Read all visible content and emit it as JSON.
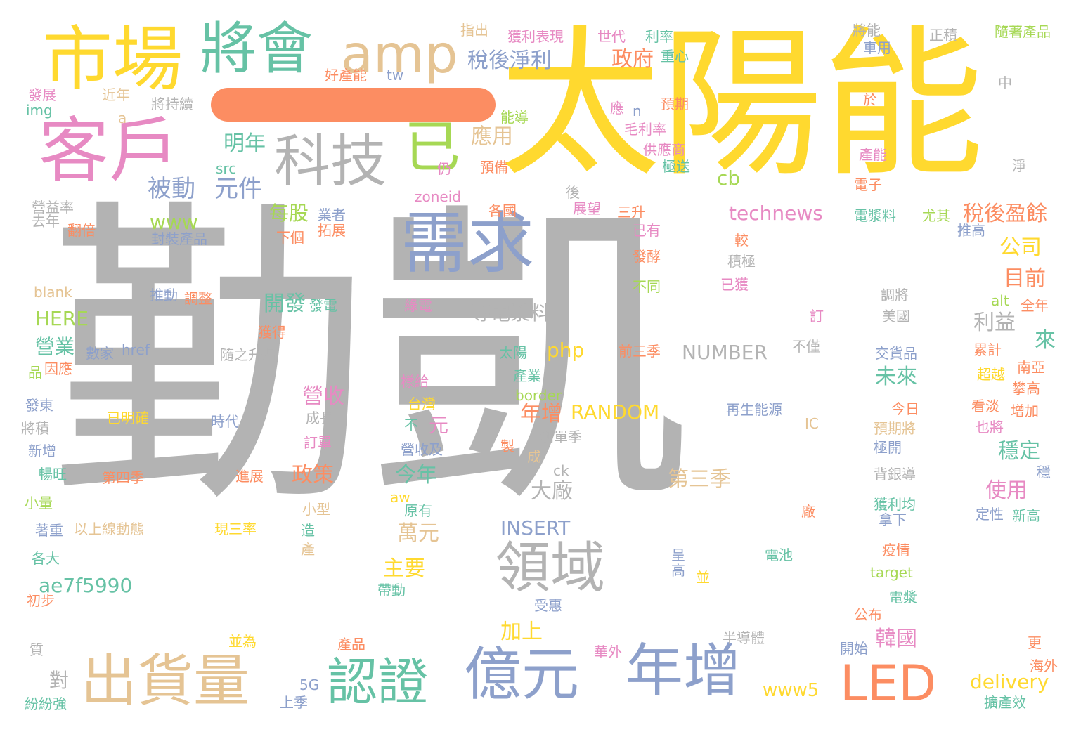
{
  "palette": {
    "gray": "#b3b3b3",
    "yellow": "#ffd92f",
    "teal": "#66c2a5",
    "orange": "#fc8d62",
    "blue": "#8da0cb",
    "pink": "#e78ac3",
    "green": "#a6d854",
    "tan": "#e5c494"
  },
  "words": [
    {
      "t": "勤凱",
      "c": "gray"
    },
    {
      "t": "太陽能",
      "c": "yellow"
    },
    {
      "t": "市場",
      "c": "yellow"
    },
    {
      "t": "將會",
      "c": "teal"
    },
    {
      "t": "amp",
      "c": "tan"
    },
    {
      "t": "客戶",
      "c": "pink"
    },
    {
      "t": "科技",
      "c": "gray"
    },
    {
      "t": "已",
      "c": "green"
    },
    {
      "t": "需求",
      "c": "blue"
    },
    {
      "t": "出貨量",
      "c": "tan"
    },
    {
      "t": "認證",
      "c": "teal"
    },
    {
      "t": "億元",
      "c": "blue"
    },
    {
      "t": "年增",
      "c": "blue"
    },
    {
      "t": "LED",
      "c": "orange"
    },
    {
      "t": "領域",
      "c": "gray"
    },
    {
      "t": "稅後淨利",
      "c": "blue"
    },
    {
      "t": "政府",
      "c": "orange"
    },
    {
      "t": "應用",
      "c": "tan"
    },
    {
      "t": "明年",
      "c": "teal"
    },
    {
      "t": "被動",
      "c": "blue"
    },
    {
      "t": "元件",
      "c": "blue"
    },
    {
      "t": "cb",
      "c": "green"
    },
    {
      "t": "technews",
      "c": "pink"
    },
    {
      "t": "稅後盈餘",
      "c": "orange"
    },
    {
      "t": "公司",
      "c": "yellow"
    },
    {
      "t": "目前",
      "c": "orange"
    },
    {
      "t": "每股",
      "c": "green"
    },
    {
      "t": "www",
      "c": "green"
    },
    {
      "t": "導電漿料",
      "c": "gray"
    },
    {
      "t": "開發",
      "c": "teal"
    },
    {
      "t": "利益",
      "c": "gray"
    },
    {
      "t": "來",
      "c": "teal"
    },
    {
      "t": "HERE",
      "c": "green"
    },
    {
      "t": "營業",
      "c": "teal"
    },
    {
      "t": "php",
      "c": "yellow"
    },
    {
      "t": "NUMBER",
      "c": "gray"
    },
    {
      "t": "未來",
      "c": "teal"
    },
    {
      "t": "營收",
      "c": "pink"
    },
    {
      "t": "年增",
      "c": "orange"
    },
    {
      "t": "RANDOM",
      "c": "yellow"
    },
    {
      "t": "元",
      "c": "pink"
    },
    {
      "t": "穩定",
      "c": "teal"
    },
    {
      "t": "政策",
      "c": "orange"
    },
    {
      "t": "今年",
      "c": "teal"
    },
    {
      "t": "第三季",
      "c": "tan"
    },
    {
      "t": "大廠",
      "c": "gray"
    },
    {
      "t": "使用",
      "c": "pink"
    },
    {
      "t": "INSERT",
      "c": "blue"
    },
    {
      "t": "萬元",
      "c": "tan"
    },
    {
      "t": "主要",
      "c": "yellow"
    },
    {
      "t": "ae7f5990",
      "c": "teal"
    },
    {
      "t": "加上",
      "c": "yellow"
    },
    {
      "t": "韓國",
      "c": "pink"
    },
    {
      "t": "delivery",
      "c": "yellow"
    },
    {
      "t": "www5",
      "c": "yellow"
    },
    {
      "t": "對",
      "c": "gray"
    },
    {
      "t": "指出",
      "c": "tan"
    },
    {
      "t": "獲利表現",
      "c": "pink"
    },
    {
      "t": "世代",
      "c": "pink"
    },
    {
      "t": "利率",
      "c": "teal"
    },
    {
      "t": "將能",
      "c": "gray"
    },
    {
      "t": "正積",
      "c": "gray"
    },
    {
      "t": "隨著產品",
      "c": "green"
    },
    {
      "t": "車用",
      "c": "blue"
    },
    {
      "t": "重心",
      "c": "teal"
    },
    {
      "t": "好產能",
      "c": "orange"
    },
    {
      "t": "tw",
      "c": "blue"
    },
    {
      "t": "發展",
      "c": "pink"
    },
    {
      "t": "近年",
      "c": "tan"
    },
    {
      "t": "img",
      "c": "teal"
    },
    {
      "t": "將持續",
      "c": "gray"
    },
    {
      "t": "a",
      "c": "tan"
    },
    {
      "t": "應",
      "c": "pink"
    },
    {
      "t": "n",
      "c": "blue"
    },
    {
      "t": "預期",
      "c": "orange"
    },
    {
      "t": "毛利率",
      "c": "pink"
    },
    {
      "t": "能導",
      "c": "green"
    },
    {
      "t": "供應商",
      "c": "pink"
    },
    {
      "t": "極送",
      "c": "teal"
    },
    {
      "t": "中",
      "c": "gray"
    },
    {
      "t": "於",
      "c": "orange"
    },
    {
      "t": "產能",
      "c": "pink"
    },
    {
      "t": "淨",
      "c": "gray"
    },
    {
      "t": "電子",
      "c": "orange"
    },
    {
      "t": "src",
      "c": "teal"
    },
    {
      "t": "仍",
      "c": "pink"
    },
    {
      "t": "預備",
      "c": "orange"
    },
    {
      "t": "zoneid",
      "c": "pink"
    },
    {
      "t": "後",
      "c": "gray"
    },
    {
      "t": "展望",
      "c": "pink"
    },
    {
      "t": "各國",
      "c": "orange"
    },
    {
      "t": "三升",
      "c": "orange"
    },
    {
      "t": "已有",
      "c": "pink"
    },
    {
      "t": "電漿料",
      "c": "teal"
    },
    {
      "t": "尤其",
      "c": "green"
    },
    {
      "t": "推高",
      "c": "blue"
    },
    {
      "t": "營益率",
      "c": "gray"
    },
    {
      "t": "去年",
      "c": "gray"
    },
    {
      "t": "翻倍",
      "c": "orange"
    },
    {
      "t": "業者",
      "c": "blue"
    },
    {
      "t": "拓展",
      "c": "orange"
    },
    {
      "t": "封裝產品",
      "c": "blue"
    },
    {
      "t": "下個",
      "c": "orange"
    },
    {
      "t": "較",
      "c": "orange"
    },
    {
      "t": "發酵",
      "c": "orange"
    },
    {
      "t": "積極",
      "c": "gray"
    },
    {
      "t": "不同",
      "c": "green"
    },
    {
      "t": "已獲",
      "c": "pink"
    },
    {
      "t": "blank",
      "c": "tan"
    },
    {
      "t": "推動",
      "c": "blue"
    },
    {
      "t": "調整",
      "c": "orange"
    },
    {
      "t": "綠電",
      "c": "pink"
    },
    {
      "t": "發電",
      "c": "teal"
    },
    {
      "t": "訂",
      "c": "pink"
    },
    {
      "t": "美國",
      "c": "gray"
    },
    {
      "t": "調將",
      "c": "gray"
    },
    {
      "t": "alt",
      "c": "green"
    },
    {
      "t": "全年",
      "c": "orange"
    },
    {
      "t": "獲得",
      "c": "orange"
    },
    {
      "t": "數家",
      "c": "blue"
    },
    {
      "t": "href",
      "c": "blue"
    },
    {
      "t": "隨之升溫",
      "c": "gray"
    },
    {
      "t": "太陽",
      "c": "teal"
    },
    {
      "t": "前三季",
      "c": "orange"
    },
    {
      "t": "不僅",
      "c": "gray"
    },
    {
      "t": "交貨品",
      "c": "blue"
    },
    {
      "t": "累計",
      "c": "orange"
    },
    {
      "t": "因應",
      "c": "orange"
    },
    {
      "t": "品",
      "c": "green"
    },
    {
      "t": "產業",
      "c": "teal"
    },
    {
      "t": "樣給",
      "c": "pink"
    },
    {
      "t": "超越",
      "c": "yellow"
    },
    {
      "t": "南亞",
      "c": "orange"
    },
    {
      "t": "發東",
      "c": "blue"
    },
    {
      "t": "border",
      "c": "green"
    },
    {
      "t": "台灣",
      "c": "yellow"
    },
    {
      "t": "已明確",
      "c": "yellow"
    },
    {
      "t": "時代",
      "c": "blue"
    },
    {
      "t": "成長",
      "c": "gray"
    },
    {
      "t": "再生能源",
      "c": "blue"
    },
    {
      "t": "今日",
      "c": "orange"
    },
    {
      "t": "攀高",
      "c": "orange"
    },
    {
      "t": "看淡",
      "c": "orange"
    },
    {
      "t": "增加",
      "c": "orange"
    },
    {
      "t": "將積",
      "c": "gray"
    },
    {
      "t": "不",
      "c": "teal"
    },
    {
      "t": "IC",
      "c": "tan"
    },
    {
      "t": "預期將",
      "c": "tan"
    },
    {
      "t": "也將",
      "c": "pink"
    },
    {
      "t": "新增",
      "c": "blue"
    },
    {
      "t": "訂單",
      "c": "pink"
    },
    {
      "t": "營收及",
      "c": "blue"
    },
    {
      "t": "製",
      "c": "orange"
    },
    {
      "t": "創單季",
      "c": "gray"
    },
    {
      "t": "極開",
      "c": "blue"
    },
    {
      "t": "暢旺",
      "c": "teal"
    },
    {
      "t": "第四季",
      "c": "orange"
    },
    {
      "t": "進展",
      "c": "orange"
    },
    {
      "t": "成",
      "c": "tan"
    },
    {
      "t": "ck",
      "c": "gray"
    },
    {
      "t": "背銀導",
      "c": "gray"
    },
    {
      "t": "穩",
      "c": "blue"
    },
    {
      "t": "小量",
      "c": "green"
    },
    {
      "t": "小型",
      "c": "tan"
    },
    {
      "t": "aw",
      "c": "yellow"
    },
    {
      "t": "原有",
      "c": "teal"
    },
    {
      "t": "廠",
      "c": "orange"
    },
    {
      "t": "獲利均",
      "c": "teal"
    },
    {
      "t": "定性",
      "c": "blue"
    },
    {
      "t": "新高",
      "c": "teal"
    },
    {
      "t": "著重",
      "c": "blue"
    },
    {
      "t": "以上線動態",
      "c": "tan"
    },
    {
      "t": "現三率",
      "c": "yellow"
    },
    {
      "t": "造",
      "c": "teal"
    },
    {
      "t": "拿下",
      "c": "blue"
    },
    {
      "t": "各大",
      "c": "teal"
    },
    {
      "t": "產",
      "c": "tan"
    },
    {
      "t": "呈",
      "c": "blue"
    },
    {
      "t": "高",
      "c": "blue"
    },
    {
      "t": "電池",
      "c": "teal"
    },
    {
      "t": "疫情",
      "c": "orange"
    },
    {
      "t": "並",
      "c": "yellow"
    },
    {
      "t": "target",
      "c": "green"
    },
    {
      "t": "初步",
      "c": "orange"
    },
    {
      "t": "帶動",
      "c": "teal"
    },
    {
      "t": "受惠",
      "c": "blue"
    },
    {
      "t": "電漿",
      "c": "teal"
    },
    {
      "t": "公布",
      "c": "orange"
    },
    {
      "t": "質",
      "c": "gray"
    },
    {
      "t": "並為",
      "c": "yellow"
    },
    {
      "t": "產品",
      "c": "orange"
    },
    {
      "t": "華外",
      "c": "pink"
    },
    {
      "t": "半導體",
      "c": "gray"
    },
    {
      "t": "開始",
      "c": "blue"
    },
    {
      "t": "更",
      "c": "orange"
    },
    {
      "t": "海外",
      "c": "orange"
    },
    {
      "t": "5G",
      "c": "blue"
    },
    {
      "t": "上季",
      "c": "blue"
    },
    {
      "t": "紛紛強",
      "c": "teal"
    },
    {
      "t": "擴產效",
      "c": "teal"
    }
  ]
}
